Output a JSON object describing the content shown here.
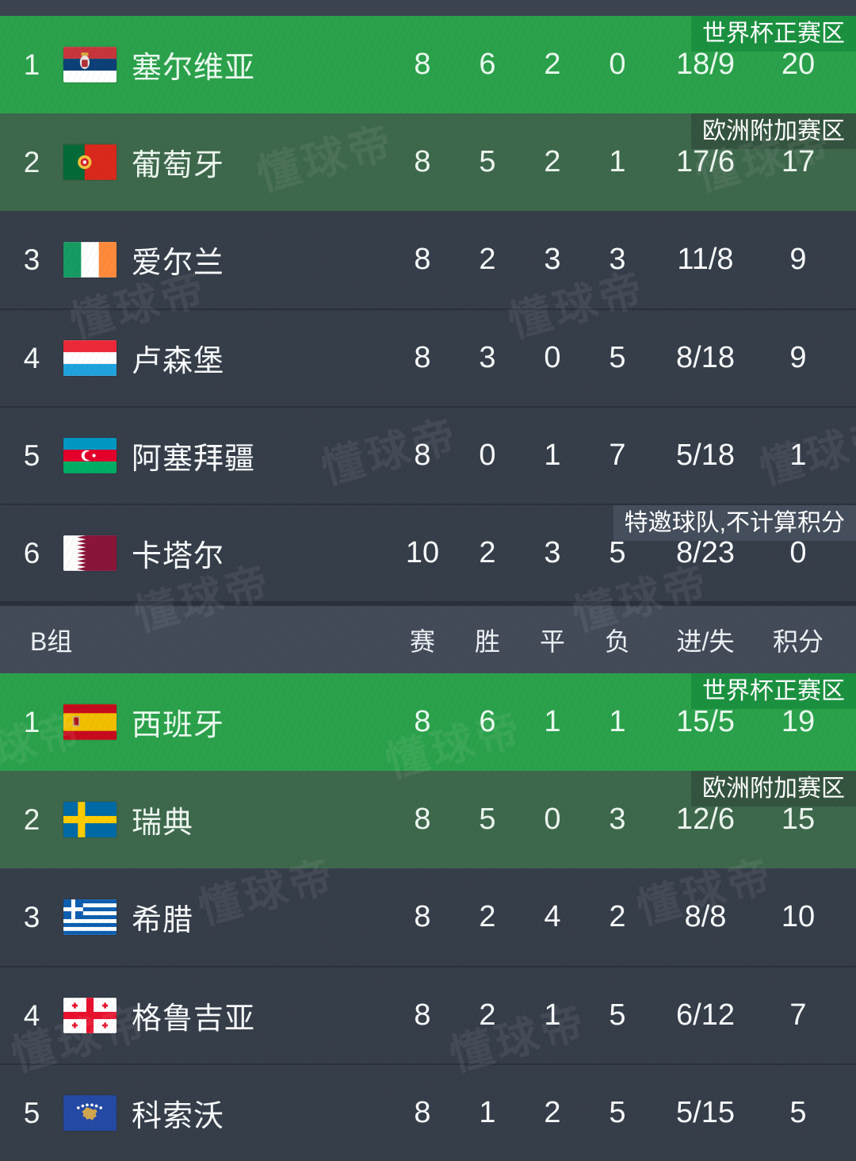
{
  "table": {
    "columns": {
      "played": "赛",
      "won": "胜",
      "drawn": "平",
      "lost": "负",
      "goals": "进/失",
      "points": "积分"
    },
    "group_b_title": "B组",
    "badges": {
      "world_cup": "世界杯正赛区",
      "playoff": "欧洲附加赛区",
      "invited": "特邀球队,不计算积分"
    },
    "groups": [
      {
        "id": "A",
        "rows": [
          {
            "rank": "1",
            "team": "塞尔维亚",
            "flag": "serbia",
            "played": "8",
            "won": "6",
            "drawn": "2",
            "lost": "0",
            "goals": "18/9",
            "points": "20",
            "zone": "green",
            "badge": "world_cup"
          },
          {
            "rank": "2",
            "team": "葡萄牙",
            "flag": "portugal",
            "played": "8",
            "won": "5",
            "drawn": "2",
            "lost": "1",
            "goals": "17/6",
            "points": "17",
            "zone": "muted",
            "badge": "playoff"
          },
          {
            "rank": "3",
            "team": "爱尔兰",
            "flag": "ireland",
            "played": "8",
            "won": "2",
            "drawn": "3",
            "lost": "3",
            "goals": "11/8",
            "points": "9",
            "zone": "dark",
            "badge": null
          },
          {
            "rank": "4",
            "team": "卢森堡",
            "flag": "luxembourg",
            "played": "8",
            "won": "3",
            "drawn": "0",
            "lost": "5",
            "goals": "8/18",
            "points": "9",
            "zone": "dark",
            "badge": null
          },
          {
            "rank": "5",
            "team": "阿塞拜疆",
            "flag": "azerbaijan",
            "played": "8",
            "won": "0",
            "drawn": "1",
            "lost": "7",
            "goals": "5/18",
            "points": "1",
            "zone": "dark",
            "badge": null
          },
          {
            "rank": "6",
            "team": "卡塔尔",
            "flag": "qatar",
            "played": "10",
            "won": "2",
            "drawn": "3",
            "lost": "5",
            "goals": "8/23",
            "points": "0",
            "zone": "dark",
            "badge": "invited"
          }
        ]
      },
      {
        "id": "B",
        "rows": [
          {
            "rank": "1",
            "team": "西班牙",
            "flag": "spain",
            "played": "8",
            "won": "6",
            "drawn": "1",
            "lost": "1",
            "goals": "15/5",
            "points": "19",
            "zone": "green",
            "badge": "world_cup"
          },
          {
            "rank": "2",
            "team": "瑞典",
            "flag": "sweden",
            "played": "8",
            "won": "5",
            "drawn": "0",
            "lost": "3",
            "goals": "12/6",
            "points": "15",
            "zone": "muted",
            "badge": "playoff"
          },
          {
            "rank": "3",
            "team": "希腊",
            "flag": "greece",
            "played": "8",
            "won": "2",
            "drawn": "4",
            "lost": "2",
            "goals": "8/8",
            "points": "10",
            "zone": "dark",
            "badge": null
          },
          {
            "rank": "4",
            "team": "格鲁吉亚",
            "flag": "georgia",
            "played": "8",
            "won": "2",
            "drawn": "1",
            "lost": "5",
            "goals": "6/12",
            "points": "7",
            "zone": "dark",
            "badge": null
          },
          {
            "rank": "5",
            "team": "科索沃",
            "flag": "kosovo",
            "played": "8",
            "won": "1",
            "drawn": "2",
            "lost": "5",
            "goals": "5/15",
            "points": "5",
            "zone": "dark",
            "badge": null
          }
        ]
      }
    ]
  },
  "watermark": {
    "text": "懂球帝"
  },
  "colors": {
    "qualified_green": "#2BA14B",
    "playoff_green": "#3E684C",
    "row_dark": "#363E4A",
    "header_gray": "#434B59",
    "badge_green_dark": "#1B9140",
    "badge_muted_dark": "#34543F",
    "badge_gray": "#454E5C"
  }
}
